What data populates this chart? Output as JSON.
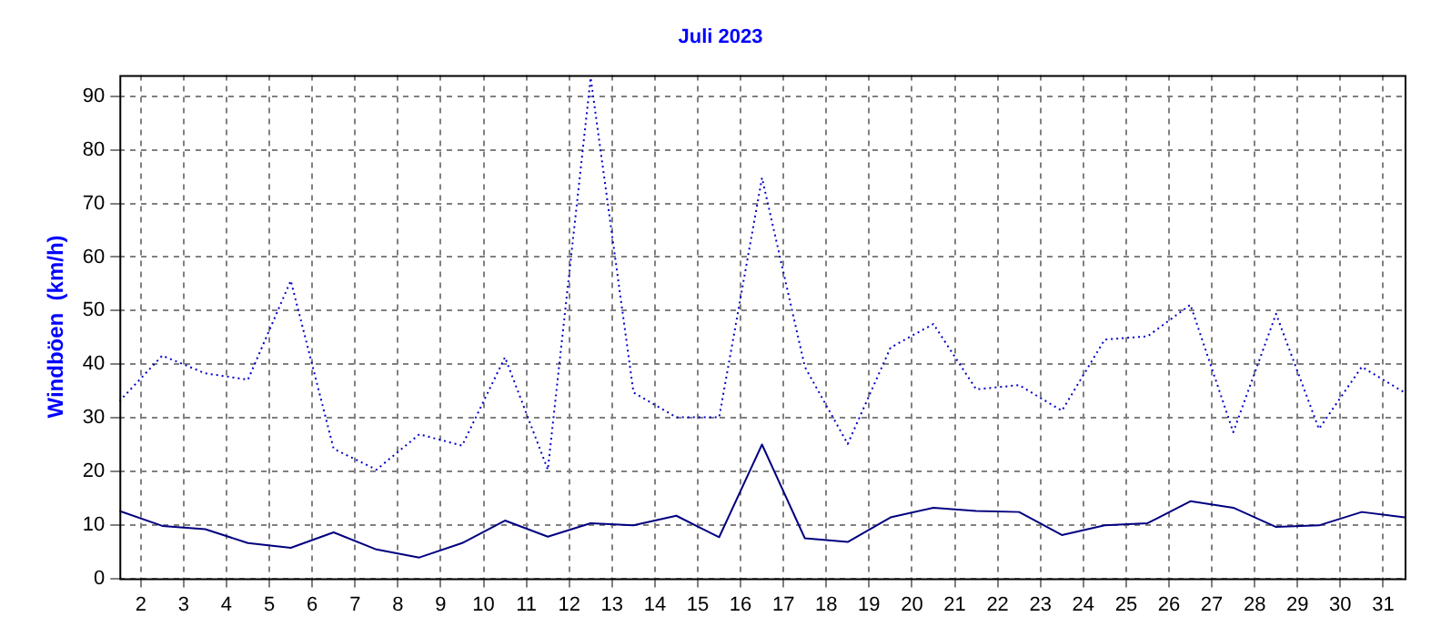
{
  "chart_data": {
    "type": "line",
    "title": "Juli 2023",
    "ylabel": "Windböen  (km/h)",
    "x": [
      1.5,
      2.5,
      3.5,
      4.5,
      5.5,
      6.5,
      7.5,
      8.5,
      9.5,
      10.5,
      11.5,
      12.5,
      13.5,
      14.5,
      15.5,
      16.5,
      17.5,
      18.5,
      19.5,
      20.5,
      21.5,
      22.5,
      23.5,
      24.5,
      25.5,
      26.5,
      27.5,
      28.5,
      29.5,
      30.5,
      31.5
    ],
    "series": [
      {
        "color": "#0000cc",
        "line_style": "dotted",
        "values": [
          33.1,
          41.6,
          38.3,
          37.1,
          55.6,
          24.2,
          20.3,
          26.9,
          24.8,
          41.3,
          20.3,
          93.5,
          34.7,
          30.1,
          30.1,
          74.8,
          39.5,
          25.1,
          43.1,
          47.5,
          35.3,
          36.1,
          31.3,
          44.6,
          45.2,
          51.1,
          27.3,
          49.4,
          27.9,
          39.5,
          34.7
        ]
      },
      {
        "color": "#000080",
        "line_style": "solid",
        "values": [
          12.6,
          9.8,
          9.2,
          6.6,
          5.7,
          8.6,
          5.4,
          3.9,
          6.6,
          10.8,
          7.8,
          10.3,
          9.9,
          11.7,
          7.7,
          25,
          7.5,
          6.8,
          11.4,
          13.2,
          12.6,
          12.4,
          8.1,
          9.9,
          10.3,
          14.4,
          13.2,
          9.6,
          9.9,
          12.4,
          11.4
        ]
      }
    ],
    "xlim": [
      1.5,
      31.5
    ],
    "xticks": [
      2,
      3,
      4,
      5,
      6,
      7,
      8,
      9,
      10,
      11,
      12,
      13,
      14,
      15,
      16,
      17,
      18,
      19,
      20,
      21,
      22,
      23,
      24,
      25,
      26,
      27,
      28,
      29,
      30,
      31
    ],
    "ylim": [
      0,
      94
    ],
    "yticks": [
      0,
      10,
      20,
      30,
      40,
      50,
      60,
      70,
      80,
      90
    ],
    "grid": true,
    "legend": false,
    "marker": "none"
  }
}
